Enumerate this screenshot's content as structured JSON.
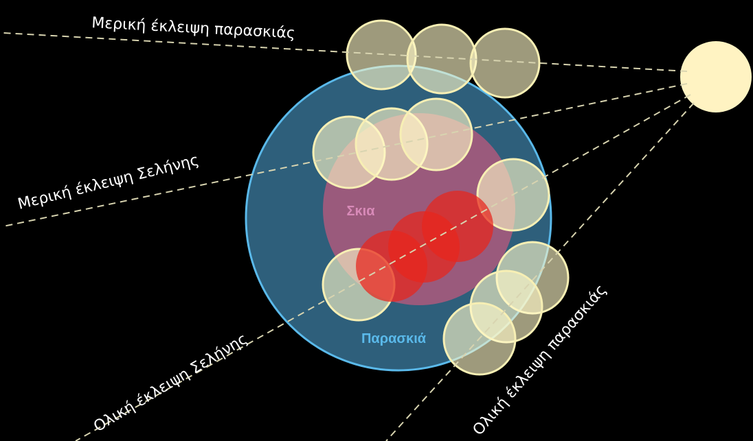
{
  "labels": {
    "partial_penumbral": "Μερική έκλειψη παρασκιάς",
    "partial_lunar": "Μερική έκλειψη Σελήνης",
    "total_lunar": "Ολική έκλειψη Σελήνης",
    "total_penumbral": "Ολική έκλειψη παρασκιάς",
    "umbra": "Σκια",
    "penumbra": "Παρασκιά"
  }
}
